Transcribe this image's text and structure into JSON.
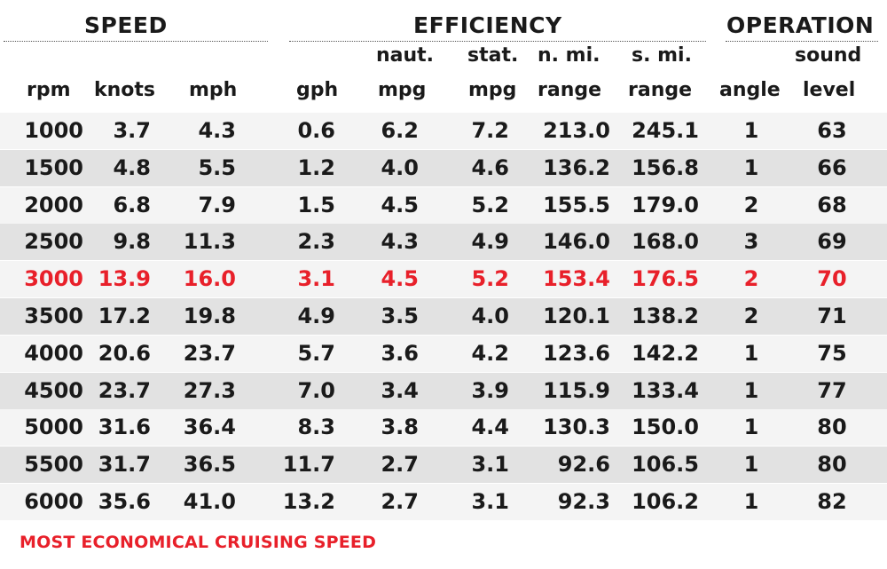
{
  "chart_data": {
    "type": "table",
    "groups": [
      {
        "id": "speed",
        "label": "SPEED"
      },
      {
        "id": "efficiency",
        "label": "EFFICIENCY"
      },
      {
        "id": "operation",
        "label": "OPERATION"
      }
    ],
    "columns": [
      {
        "key": "rpm",
        "top": "",
        "label": "rpm"
      },
      {
        "key": "knots",
        "top": "",
        "label": "knots"
      },
      {
        "key": "mph",
        "top": "",
        "label": "mph"
      },
      {
        "key": "gph",
        "top": "",
        "label": "gph"
      },
      {
        "key": "naut_mpg",
        "top": "naut.",
        "label": "mpg"
      },
      {
        "key": "stat_mpg",
        "top": "stat.",
        "label": "mpg"
      },
      {
        "key": "nmi_range",
        "top": "n. mi.",
        "label": "range"
      },
      {
        "key": "smi_range",
        "top": "s. mi.",
        "label": "range"
      },
      {
        "key": "angle",
        "top": "",
        "label": "angle"
      },
      {
        "key": "sound",
        "top": "sound",
        "label": "level"
      }
    ],
    "rows": [
      [
        "1000",
        "3.7",
        "4.3",
        "0.6",
        "6.2",
        "7.2",
        "213.0",
        "245.1",
        "1",
        "63"
      ],
      [
        "1500",
        "4.8",
        "5.5",
        "1.2",
        "4.0",
        "4.6",
        "136.2",
        "156.8",
        "1",
        "66"
      ],
      [
        "2000",
        "6.8",
        "7.9",
        "1.5",
        "4.5",
        "5.2",
        "155.5",
        "179.0",
        "2",
        "68"
      ],
      [
        "2500",
        "9.8",
        "11.3",
        "2.3",
        "4.3",
        "4.9",
        "146.0",
        "168.0",
        "3",
        "69"
      ],
      [
        "3000",
        "13.9",
        "16.0",
        "3.1",
        "4.5",
        "5.2",
        "153.4",
        "176.5",
        "2",
        "70"
      ],
      [
        "3500",
        "17.2",
        "19.8",
        "4.9",
        "3.5",
        "4.0",
        "120.1",
        "138.2",
        "2",
        "71"
      ],
      [
        "4000",
        "20.6",
        "23.7",
        "5.7",
        "3.6",
        "4.2",
        "123.6",
        "142.2",
        "1",
        "75"
      ],
      [
        "4500",
        "23.7",
        "27.3",
        "7.0",
        "3.4",
        "3.9",
        "115.9",
        "133.4",
        "1",
        "77"
      ],
      [
        "5000",
        "31.6",
        "36.4",
        "8.3",
        "3.8",
        "4.4",
        "130.3",
        "150.0",
        "1",
        "80"
      ],
      [
        "5500",
        "31.7",
        "36.5",
        "11.7",
        "2.7",
        "3.1",
        "92.6",
        "106.5",
        "1",
        "80"
      ],
      [
        "6000",
        "35.6",
        "41.0",
        "13.2",
        "2.7",
        "3.1",
        "92.3",
        "106.2",
        "1",
        "82"
      ]
    ],
    "highlight_row_rpm": "3000",
    "highlight_color": "#e8202a",
    "footnote": "MOST ECONOMICAL CRUISING SPEED"
  }
}
